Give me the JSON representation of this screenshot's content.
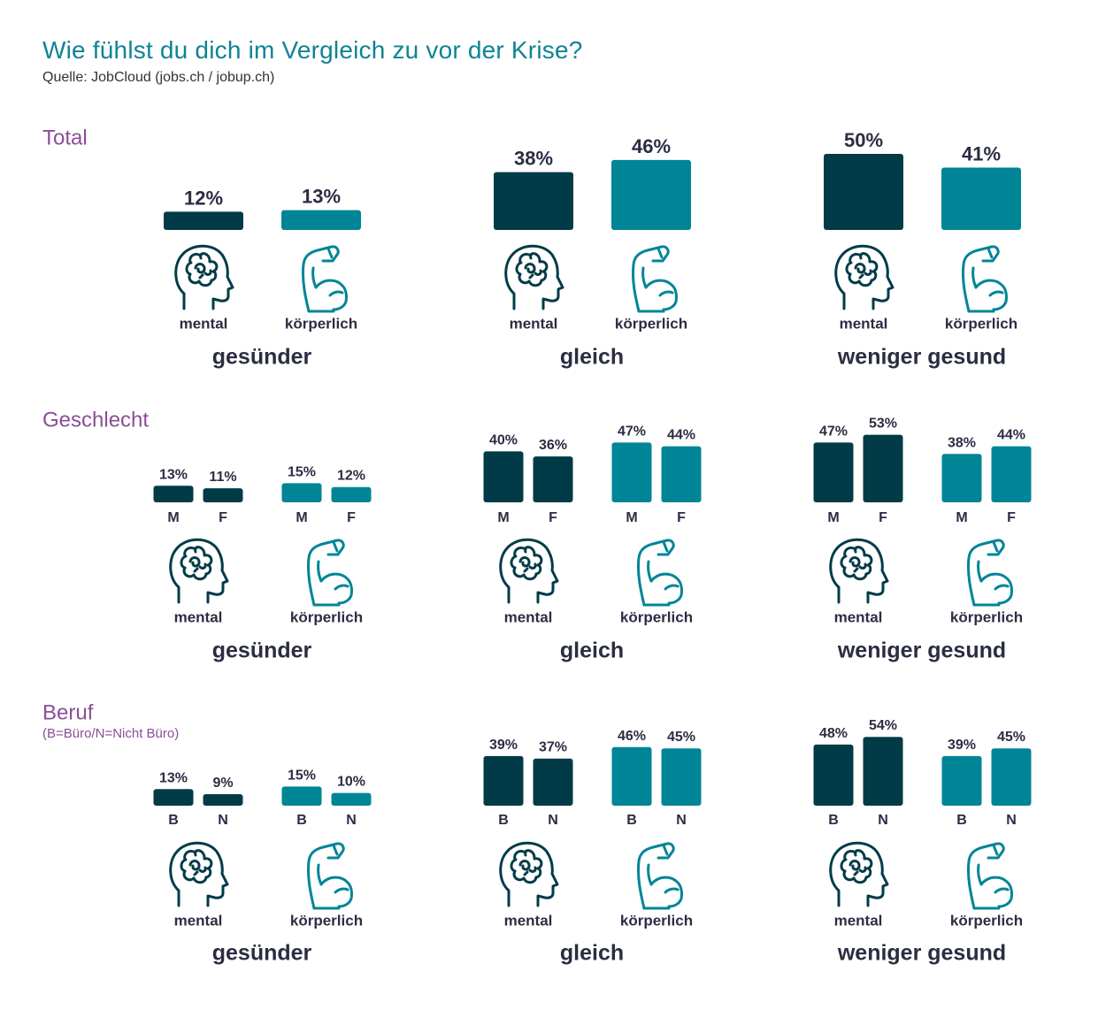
{
  "header": {
    "title": "Wie fühlst du dich im Vergleich zu vor der Krise?",
    "source": "Quelle: JobCloud (jobs.ch / jobup.ch)"
  },
  "colors": {
    "mental": "#013b48",
    "koerperlich": "#008597",
    "section": "#8a4e96",
    "text": "#2b2d42",
    "title": "#0e8494"
  },
  "icons": {
    "mental": "head-brain-icon",
    "koerperlich": "flexed-arm-icon"
  },
  "chart_data": [
    {
      "type": "bar",
      "section": "Total",
      "subtitle": "",
      "groups": [
        "gesünder",
        "gleich",
        "weniger gesund"
      ],
      "series": [
        {
          "name": "mental",
          "values": [
            [
              12
            ],
            [
              38
            ],
            [
              50
            ]
          ]
        },
        {
          "name": "körperlich",
          "values": [
            [
              13
            ],
            [
              46
            ],
            [
              41
            ]
          ]
        }
      ],
      "unit": "%"
    },
    {
      "type": "bar",
      "section": "Geschlecht",
      "subtitle": "",
      "groups": [
        "gesünder",
        "gleich",
        "weniger gesund"
      ],
      "subcategories": [
        "M",
        "F"
      ],
      "series": [
        {
          "name": "mental",
          "values": [
            [
              13,
              11
            ],
            [
              40,
              36
            ],
            [
              47,
              53
            ]
          ]
        },
        {
          "name": "körperlich",
          "values": [
            [
              15,
              12
            ],
            [
              47,
              44
            ],
            [
              38,
              44
            ]
          ]
        }
      ],
      "unit": "%"
    },
    {
      "type": "bar",
      "section": "Beruf",
      "subtitle": "(B=Büro/N=Nicht Büro)",
      "groups": [
        "gesünder",
        "gleich",
        "weniger gesund"
      ],
      "subcategories": [
        "B",
        "N"
      ],
      "series": [
        {
          "name": "mental",
          "values": [
            [
              13,
              9
            ],
            [
              39,
              37
            ],
            [
              48,
              54
            ]
          ]
        },
        {
          "name": "körperlich",
          "values": [
            [
              15,
              10
            ],
            [
              46,
              45
            ],
            [
              39,
              45
            ]
          ]
        }
      ],
      "unit": "%"
    }
  ]
}
